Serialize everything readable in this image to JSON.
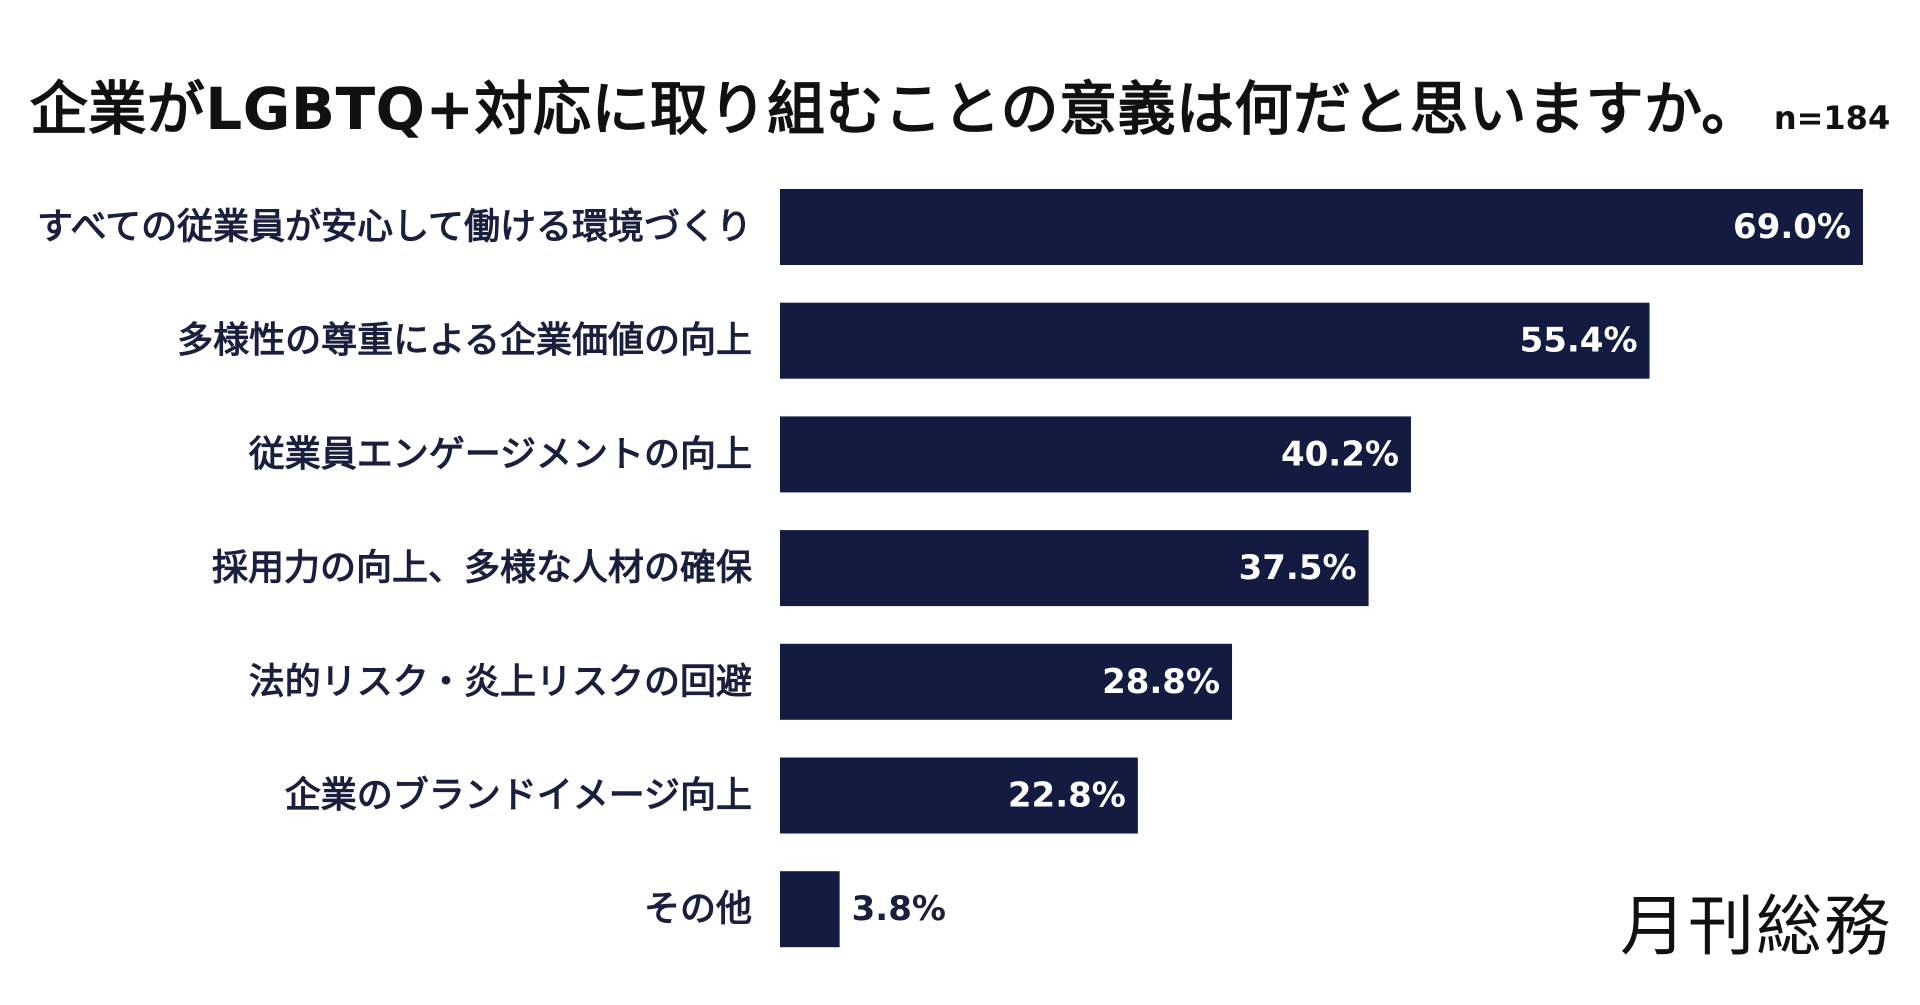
{
  "chart_data": {
    "type": "bar",
    "orientation": "horizontal",
    "title": "企業がLGBTQ+対応に取り組むことの意義は何だと思いますか。",
    "sample_note": "n=184",
    "categories": [
      "すべての従業員が安心して働ける環境づくり",
      "多様性の尊重による企業価値の向上",
      "従業員エンゲージメントの向上",
      "採用力の向上、多様な人材の確保",
      "法的リスク・炎上リスクの回避",
      "企業のブランドイメージ向上",
      "その他"
    ],
    "values": [
      69.0,
      55.4,
      40.2,
      37.5,
      28.8,
      22.8,
      3.8
    ],
    "value_labels": [
      "69.0%",
      "55.4%",
      "40.2%",
      "37.5%",
      "28.8%",
      "22.8%",
      "3.8%"
    ],
    "unit": "%",
    "xlim": [
      0,
      69.0
    ],
    "grid": false,
    "legend": "none",
    "bar_color": "#141b40"
  },
  "brand": {
    "logo_text": "月刊総務"
  }
}
